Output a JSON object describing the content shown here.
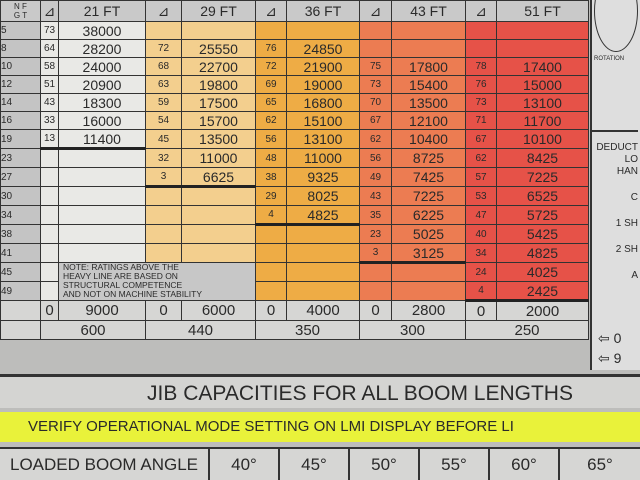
{
  "header": {
    "ngt_label_top": "N F",
    "ngt_label_bottom": "G T",
    "angle_icon": "boom-angle-icon",
    "booms": [
      "21 FT",
      "29 FT",
      "36 FT",
      "43 FT",
      "51 FT"
    ]
  },
  "colors": {
    "21_ft": "#e9e9e6",
    "29_ft": "#f3cf8e",
    "36_ft": "#eeac45",
    "43_ft": "#ec7c52",
    "51_ft": "#e65248"
  },
  "rows": [
    {
      "radius": "5",
      "cells": [
        [
          "73",
          "38000"
        ],
        null,
        null,
        null,
        null
      ]
    },
    {
      "radius": "8",
      "cells": [
        [
          "64",
          "28200"
        ],
        [
          "72",
          "25550"
        ],
        [
          "76",
          "24850"
        ],
        null,
        null
      ]
    },
    {
      "radius": "10",
      "cells": [
        [
          "58",
          "24000"
        ],
        [
          "68",
          "22700"
        ],
        [
          "72",
          "21900"
        ],
        [
          "75",
          "17800"
        ],
        [
          "78",
          "17400"
        ]
      ]
    },
    {
      "radius": "12",
      "cells": [
        [
          "51",
          "20900"
        ],
        [
          "63",
          "19800"
        ],
        [
          "69",
          "19000"
        ],
        [
          "73",
          "15400"
        ],
        [
          "76",
          "15000"
        ]
      ]
    },
    {
      "radius": "14",
      "cells": [
        [
          "43",
          "18300"
        ],
        [
          "59",
          "17500"
        ],
        [
          "65",
          "16800"
        ],
        [
          "70",
          "13500"
        ],
        [
          "73",
          "13100"
        ]
      ]
    },
    {
      "radius": "16",
      "cells": [
        [
          "33",
          "16000"
        ],
        [
          "54",
          "15700"
        ],
        [
          "62",
          "15100"
        ],
        [
          "67",
          "12100"
        ],
        [
          "71",
          "11700"
        ]
      ]
    },
    {
      "radius": "19",
      "cells": [
        [
          "13",
          "11400"
        ],
        [
          "45",
          "13500"
        ],
        [
          "56",
          "13100"
        ],
        [
          "62",
          "10400"
        ],
        [
          "67",
          "10100"
        ]
      ]
    },
    {
      "radius": "23",
      "cells": [
        null,
        [
          "32",
          "11000"
        ],
        [
          "48",
          "11000"
        ],
        [
          "56",
          "8725"
        ],
        [
          "62",
          "8425"
        ]
      ]
    },
    {
      "radius": "27",
      "cells": [
        null,
        [
          "3",
          "6625"
        ],
        [
          "38",
          "9325"
        ],
        [
          "49",
          "7425"
        ],
        [
          "57",
          "7225"
        ]
      ]
    },
    {
      "radius": "30",
      "cells": [
        null,
        null,
        [
          "29",
          "8025"
        ],
        [
          "43",
          "7225"
        ],
        [
          "53",
          "6525"
        ]
      ]
    },
    {
      "radius": "34",
      "cells": [
        null,
        null,
        [
          "4",
          "4825"
        ],
        [
          "35",
          "6225"
        ],
        [
          "47",
          "5725"
        ]
      ]
    },
    {
      "radius": "38",
      "cells": [
        null,
        null,
        null,
        [
          "23",
          "5025"
        ],
        [
          "40",
          "5425"
        ]
      ]
    },
    {
      "radius": "41",
      "cells": [
        null,
        null,
        null,
        [
          "3",
          "3125"
        ],
        [
          "34",
          "4825"
        ]
      ]
    },
    {
      "radius": "45",
      "cells": [
        null,
        null,
        null,
        null,
        [
          "24",
          "4025"
        ]
      ]
    },
    {
      "radius": "49",
      "cells": [
        null,
        null,
        null,
        null,
        [
          "4",
          "2425"
        ]
      ]
    }
  ],
  "bottom_row_1": [
    [
      "0",
      "9000"
    ],
    [
      "0",
      "6000"
    ],
    [
      "0",
      "4000"
    ],
    [
      "0",
      "2800"
    ],
    [
      "0",
      "2000"
    ]
  ],
  "bottom_row_2": [
    "600",
    "440",
    "350",
    "300",
    "250"
  ],
  "note": [
    "NOTE: RATINGS ABOVE THE",
    "HEAVY LINE ARE BASED ON",
    "STRUCTURAL COMPETENCE",
    "AND NOT ON MACHINE STABILITY"
  ],
  "side": {
    "rotation": "ROTATION",
    "deduct": [
      "DEDUCT",
      "LO",
      "HAN"
    ],
    "items": [
      "C",
      "1 SH",
      "2 SH",
      "A"
    ],
    "arrow_1": "⇦ 0",
    "arrow_2": "⇦ 9"
  },
  "jib_title": "JIB CAPACITIES FOR ALL BOOM LENGTHS",
  "verify_banner": "VERIFY OPERATIONAL MODE SETTING ON LMI DISPLAY BEFORE LI",
  "boom_angle": {
    "label": "LOADED BOOM ANGLE",
    "values": [
      "40°",
      "45°",
      "50°",
      "55°",
      "60°",
      "65°"
    ]
  }
}
